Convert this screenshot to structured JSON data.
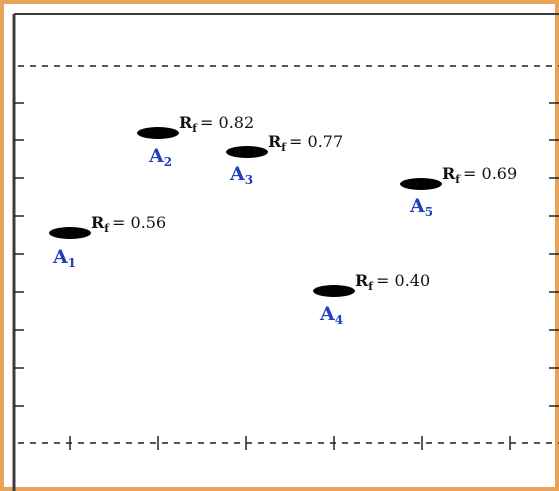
{
  "plate": {
    "frame_colors": {
      "outer": "#e7a35a",
      "inner": "#3c3c3c",
      "dash": "#222222",
      "spot": "#000000",
      "label": "#1f3fbf"
    },
    "spots": [
      {
        "id": "A1",
        "name": "A",
        "sub": "1",
        "rf_text": "R",
        "rf_sub": "f",
        "rf_value": "= 0.56"
      },
      {
        "id": "A2",
        "name": "A",
        "sub": "2",
        "rf_text": "R",
        "rf_sub": "f",
        "rf_value": "= 0.82"
      },
      {
        "id": "A3",
        "name": "A",
        "sub": "3",
        "rf_text": "R",
        "rf_sub": "f",
        "rf_value": "= 0.77"
      },
      {
        "id": "A4",
        "name": "A",
        "sub": "4",
        "rf_text": "R",
        "rf_sub": "f",
        "rf_value": "= 0.40"
      },
      {
        "id": "A5",
        "name": "A",
        "sub": "5",
        "rf_text": "R",
        "rf_sub": "f",
        "rf_value": "= 0.69"
      }
    ]
  }
}
